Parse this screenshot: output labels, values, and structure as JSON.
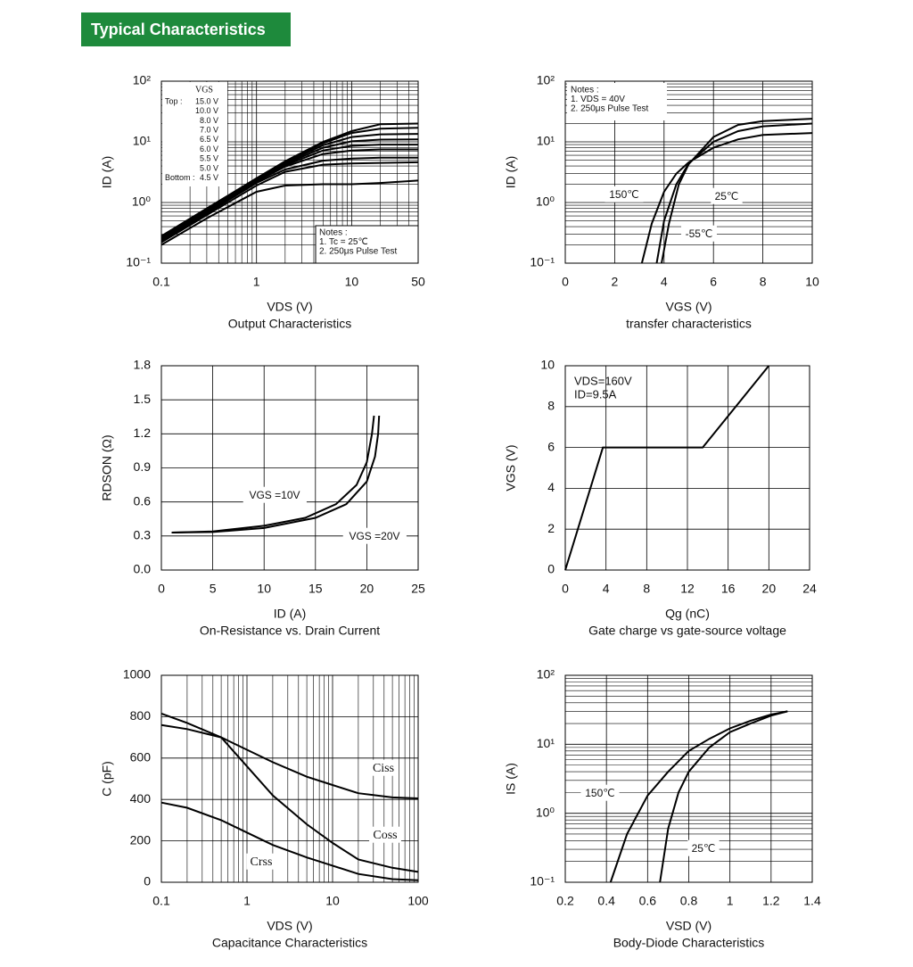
{
  "header": {
    "title": "Typical Characteristics"
  },
  "chart_data": [
    {
      "type": "line",
      "title": "Output Characteristics",
      "xlabel": "VDS (V)",
      "ylabel": "ID (A)",
      "xscale": "log",
      "yscale": "log",
      "grid": true,
      "xlim": [
        0.1,
        50
      ],
      "ylim": [
        0.1,
        100
      ],
      "xticks": [
        0.1,
        1,
        10,
        50
      ],
      "yticks": [
        {
          "value": 0.1,
          "label": "10⁻¹"
        },
        {
          "value": 1,
          "label": "10⁰"
        },
        {
          "value": 10,
          "label": "10¹"
        },
        {
          "value": 100,
          "label": "10²"
        }
      ],
      "legend_title": "VGS",
      "legend_top": "Top :",
      "legend_bottom": "Bottom :",
      "notes": [
        "Notes :",
        "1. Tc = 25℃",
        "2. 250μs Pulse Test"
      ],
      "series": [
        {
          "name": "15.0 V",
          "color": "#000000",
          "x": [
            0.1,
            0.3,
            1,
            2,
            5,
            10,
            20,
            50
          ],
          "values": [
            0.28,
            0.8,
            2.5,
            4.8,
            10,
            15,
            19.5,
            20
          ]
        },
        {
          "name": "10.0 V",
          "color": "#000000",
          "x": [
            0.1,
            0.3,
            1,
            2,
            5,
            10,
            20,
            50
          ],
          "values": [
            0.27,
            0.78,
            2.5,
            4.7,
            9.5,
            14,
            16.5,
            17
          ]
        },
        {
          "name": "8.0 V",
          "color": "#000000",
          "x": [
            0.1,
            0.3,
            1,
            2,
            5,
            10,
            20,
            50
          ],
          "values": [
            0.26,
            0.76,
            2.4,
            4.5,
            8.8,
            12,
            13.3,
            13.5
          ]
        },
        {
          "name": "7.0 V",
          "color": "#000000",
          "x": [
            0.1,
            0.3,
            1,
            2,
            5,
            10,
            20,
            50
          ],
          "values": [
            0.25,
            0.74,
            2.3,
            4.3,
            8,
            10.2,
            10.9,
            11
          ]
        },
        {
          "name": "6.5 V",
          "color": "#000000",
          "x": [
            0.1,
            0.3,
            1,
            2,
            5,
            10,
            20,
            50
          ],
          "values": [
            0.25,
            0.72,
            2.3,
            4.1,
            7.2,
            8.6,
            9,
            9
          ]
        },
        {
          "name": "6.0 V",
          "color": "#000000",
          "x": [
            0.1,
            0.3,
            1,
            2,
            5,
            10,
            20,
            50
          ],
          "values": [
            0.24,
            0.7,
            2.2,
            3.9,
            6.3,
            7.2,
            7.5,
            7.5
          ]
        },
        {
          "name": "5.5 V",
          "color": "#000000",
          "x": [
            0.1,
            0.3,
            1,
            2,
            5,
            10,
            20,
            50
          ],
          "values": [
            0.23,
            0.66,
            2.1,
            3.5,
            4.9,
            5.3,
            5.5,
            5.5
          ]
        },
        {
          "name": "5.0 V",
          "color": "#000000",
          "x": [
            0.1,
            0.3,
            1,
            2,
            5,
            10,
            20,
            50
          ],
          "values": [
            0.22,
            0.62,
            1.9,
            3.2,
            4.2,
            4.4,
            4.5,
            4.6
          ]
        },
        {
          "name": "4.5 V",
          "color": "#000000",
          "x": [
            0.1,
            0.3,
            1,
            2,
            5,
            10,
            20,
            50
          ],
          "values": [
            0.2,
            0.55,
            1.5,
            1.9,
            2,
            2,
            2.1,
            2.3
          ]
        }
      ]
    },
    {
      "type": "line",
      "title": "transfer characteristics",
      "xlabel": "VGS (V)",
      "ylabel": "ID (A)",
      "xscale": "linear",
      "yscale": "log",
      "grid": true,
      "xlim": [
        0,
        10
      ],
      "ylim": [
        0.1,
        100
      ],
      "xticks": [
        0,
        2,
        4,
        6,
        8,
        10
      ],
      "yticks": [
        {
          "value": 0.1,
          "label": "10⁻¹"
        },
        {
          "value": 1,
          "label": "10⁰"
        },
        {
          "value": 10,
          "label": "10¹"
        },
        {
          "value": 100,
          "label": "10²"
        }
      ],
      "notes": [
        "Notes :",
        "1. VDS = 40V",
        "2. 250μs Pulse Test"
      ],
      "series": [
        {
          "name": "150℃",
          "color": "#000000",
          "x": [
            3.1,
            3.5,
            4,
            4.5,
            5,
            6,
            7,
            8,
            10
          ],
          "values": [
            0.1,
            0.45,
            1.5,
            3,
            4.6,
            8,
            11,
            13,
            14
          ]
        },
        {
          "name": "25℃",
          "color": "#000000",
          "x": [
            3.7,
            4,
            4.5,
            5,
            6,
            7,
            8,
            10
          ],
          "values": [
            0.1,
            0.5,
            2,
            4.4,
            10,
            15,
            18,
            20
          ]
        },
        {
          "name": "-55℃",
          "color": "#000000",
          "x": [
            3.9,
            4.2,
            4.6,
            5,
            6,
            7,
            8,
            10
          ],
          "values": [
            0.1,
            0.45,
            2,
            4.3,
            12,
            19,
            22,
            24
          ]
        }
      ]
    },
    {
      "type": "line",
      "title": "On-Resistance vs. Drain Current",
      "xlabel": "ID (A)",
      "ylabel": "RDSON (Ω)",
      "xscale": "linear",
      "yscale": "linear",
      "grid": true,
      "xlim": [
        0,
        25
      ],
      "ylim": [
        0,
        1.8
      ],
      "xticks": [
        0,
        5,
        10,
        15,
        20,
        25
      ],
      "yticks": [
        {
          "value": 0,
          "label": "0.0"
        },
        0.3,
        0.6,
        0.9,
        1.2,
        1.5,
        1.8
      ],
      "series": [
        {
          "name": "VGS =10V",
          "color": "#000000",
          "x": [
            1,
            5,
            10,
            14,
            17,
            19,
            20,
            20.5,
            20.7
          ],
          "values": [
            0.33,
            0.34,
            0.39,
            0.46,
            0.58,
            0.75,
            0.95,
            1.2,
            1.36
          ]
        },
        {
          "name": "VGS =20V",
          "color": "#000000",
          "x": [
            1,
            5,
            10,
            15,
            18,
            20,
            20.8,
            21.1,
            21.2
          ],
          "values": [
            0.33,
            0.335,
            0.37,
            0.46,
            0.58,
            0.78,
            1.0,
            1.2,
            1.36
          ]
        }
      ]
    },
    {
      "type": "line",
      "title": "Gate charge vs gate-source voltage",
      "xlabel": "Qg (nC)",
      "ylabel": "VGS (V)",
      "xscale": "linear",
      "yscale": "linear",
      "grid": true,
      "xlim": [
        0,
        24
      ],
      "ylim": [
        0,
        10
      ],
      "xticks": [
        0,
        4,
        8,
        12,
        16,
        20,
        24
      ],
      "yticks": [
        0,
        2,
        4,
        6,
        8,
        10
      ],
      "notes": [
        "VDS=160V",
        "ID=9.5A"
      ],
      "series": [
        {
          "color": "#000000",
          "x": [
            0,
            3.7,
            13.5,
            20
          ],
          "values": [
            0,
            6,
            6,
            10
          ]
        }
      ]
    },
    {
      "type": "line",
      "title": "Capacitance Characteristics",
      "xlabel": "VDS (V)",
      "ylabel": "C (pF)",
      "xscale": "log",
      "yscale": "linear",
      "grid": true,
      "xlim": [
        0.1,
        100
      ],
      "ylim": [
        0,
        1000
      ],
      "xticks": [
        0.1,
        1,
        10,
        100
      ],
      "yticks": [
        0,
        200,
        400,
        600,
        800,
        1000
      ],
      "series": [
        {
          "name": "Ciss",
          "color": "#000000",
          "x": [
            0.1,
            0.2,
            0.5,
            1,
            2,
            5,
            10,
            20,
            50,
            100
          ],
          "values": [
            760,
            740,
            700,
            640,
            580,
            510,
            470,
            430,
            410,
            405
          ]
        },
        {
          "name": "Coss",
          "color": "#000000",
          "x": [
            0.1,
            0.2,
            0.5,
            1,
            2,
            5,
            10,
            20,
            50,
            100
          ],
          "values": [
            815,
            770,
            700,
            560,
            420,
            280,
            190,
            110,
            70,
            50
          ]
        },
        {
          "name": "Crss",
          "color": "#000000",
          "x": [
            0.1,
            0.2,
            0.5,
            1,
            2,
            5,
            10,
            20,
            50,
            100
          ],
          "values": [
            385,
            360,
            300,
            240,
            180,
            120,
            80,
            40,
            15,
            10
          ]
        }
      ]
    },
    {
      "type": "line",
      "title": "Body-Diode Characteristics",
      "xlabel": "VSD (V)",
      "ylabel": "IS (A)",
      "xscale": "linear",
      "yscale": "log",
      "grid": true,
      "xlim": [
        0.2,
        1.4
      ],
      "ylim": [
        0.1,
        100
      ],
      "xticks": [
        0.2,
        0.4,
        0.6,
        0.8,
        1,
        1.2,
        1.4
      ],
      "yticks": [
        {
          "value": 0.1,
          "label": "10⁻¹"
        },
        {
          "value": 1,
          "label": "10⁰"
        },
        {
          "value": 10,
          "label": "10¹"
        },
        {
          "value": 100,
          "label": "10²"
        }
      ],
      "series": [
        {
          "name": "150℃",
          "color": "#000000",
          "x": [
            0.42,
            0.5,
            0.6,
            0.7,
            0.8,
            0.9,
            1.0,
            1.1,
            1.2,
            1.28
          ],
          "values": [
            0.1,
            0.5,
            1.8,
            4,
            8,
            12,
            17,
            22,
            27,
            30
          ]
        },
        {
          "name": "25℃",
          "color": "#000000",
          "x": [
            0.66,
            0.7,
            0.75,
            0.8,
            0.9,
            1.0,
            1.1,
            1.2,
            1.28
          ],
          "values": [
            0.1,
            0.6,
            2,
            4,
            9,
            15,
            20,
            26,
            30
          ]
        }
      ]
    }
  ]
}
